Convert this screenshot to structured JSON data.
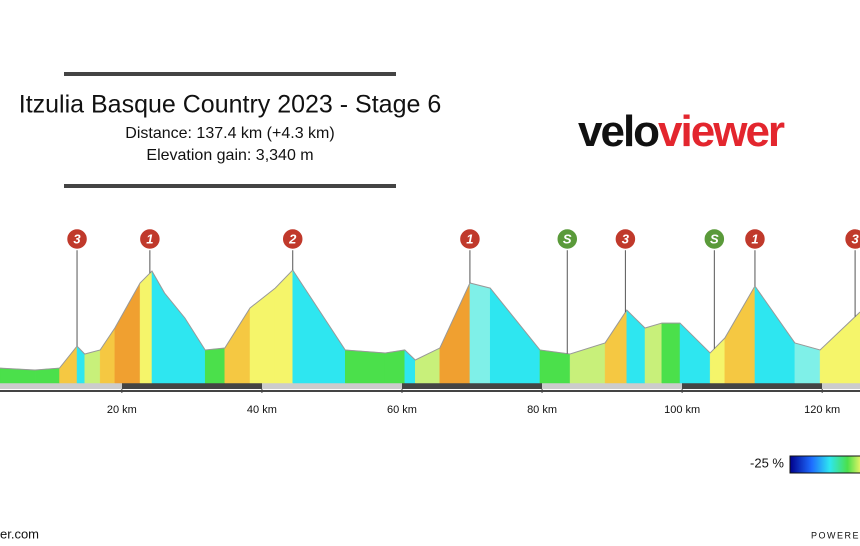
{
  "chart_data": {
    "type": "area",
    "title": "Itzulia Basque Country 2023 - Stage 6",
    "subtitle": [
      "Distance: 137.4 km (+4.3 km)",
      "Elevation gain: 3,340 m"
    ],
    "logo": [
      "velo",
      "viewer"
    ],
    "legend_label": "-25 %",
    "footer": [
      "er.com",
      "POWERE"
    ],
    "x": [
      2.6,
      7.6,
      11.1,
      13.6,
      14.7,
      16.9,
      19,
      22.6,
      24.3,
      26.1,
      29,
      31.9,
      34.7,
      38.3,
      41.9,
      44.4,
      51.9,
      57.6,
      60.4,
      61.9,
      65.4,
      69.7,
      72.6,
      79.7,
      84,
      89,
      92.1,
      94.7,
      97.1,
      99.7,
      104,
      106.1,
      110.4,
      116.1,
      119.7,
      125.4
    ],
    "values": [
      85,
      74,
      85,
      210,
      165,
      188,
      313,
      569,
      637,
      512,
      370,
      188,
      199,
      427,
      540,
      643,
      188,
      171,
      188,
      131,
      199,
      569,
      540,
      188,
      165,
      228,
      415,
      313,
      341,
      341,
      171,
      256,
      552,
      228,
      188,
      404
    ],
    "xlim": [
      2.6,
      125.4
    ],
    "ylim": [
      0,
      700
    ],
    "xticks": [
      {
        "value": 20,
        "label": "20 km"
      },
      {
        "value": 40,
        "label": "40 km"
      },
      {
        "value": 60,
        "label": "60 km"
      },
      {
        "value": 80,
        "label": "80 km"
      },
      {
        "value": 100,
        "label": "100 km"
      },
      {
        "value": 120,
        "label": "120 km"
      }
    ],
    "annotations": [
      {
        "label": "3",
        "x": 13.6,
        "color": "#c0392b"
      },
      {
        "label": "1",
        "x": 24,
        "color": "#c0392b"
      },
      {
        "label": "2",
        "x": 44.4,
        "color": "#c0392b"
      },
      {
        "label": "1",
        "x": 69.7,
        "color": "#c0392b"
      },
      {
        "label": "S",
        "x": 83.6,
        "color": "#5a9a3a"
      },
      {
        "label": "3",
        "x": 91.9,
        "color": "#c0392b"
      },
      {
        "label": "S",
        "x": 104.6,
        "color": "#5a9a3a"
      },
      {
        "label": "1",
        "x": 110.4,
        "color": "#c0392b"
      },
      {
        "label": "3",
        "x": 124.7,
        "color": "#c0392b"
      }
    ]
  }
}
